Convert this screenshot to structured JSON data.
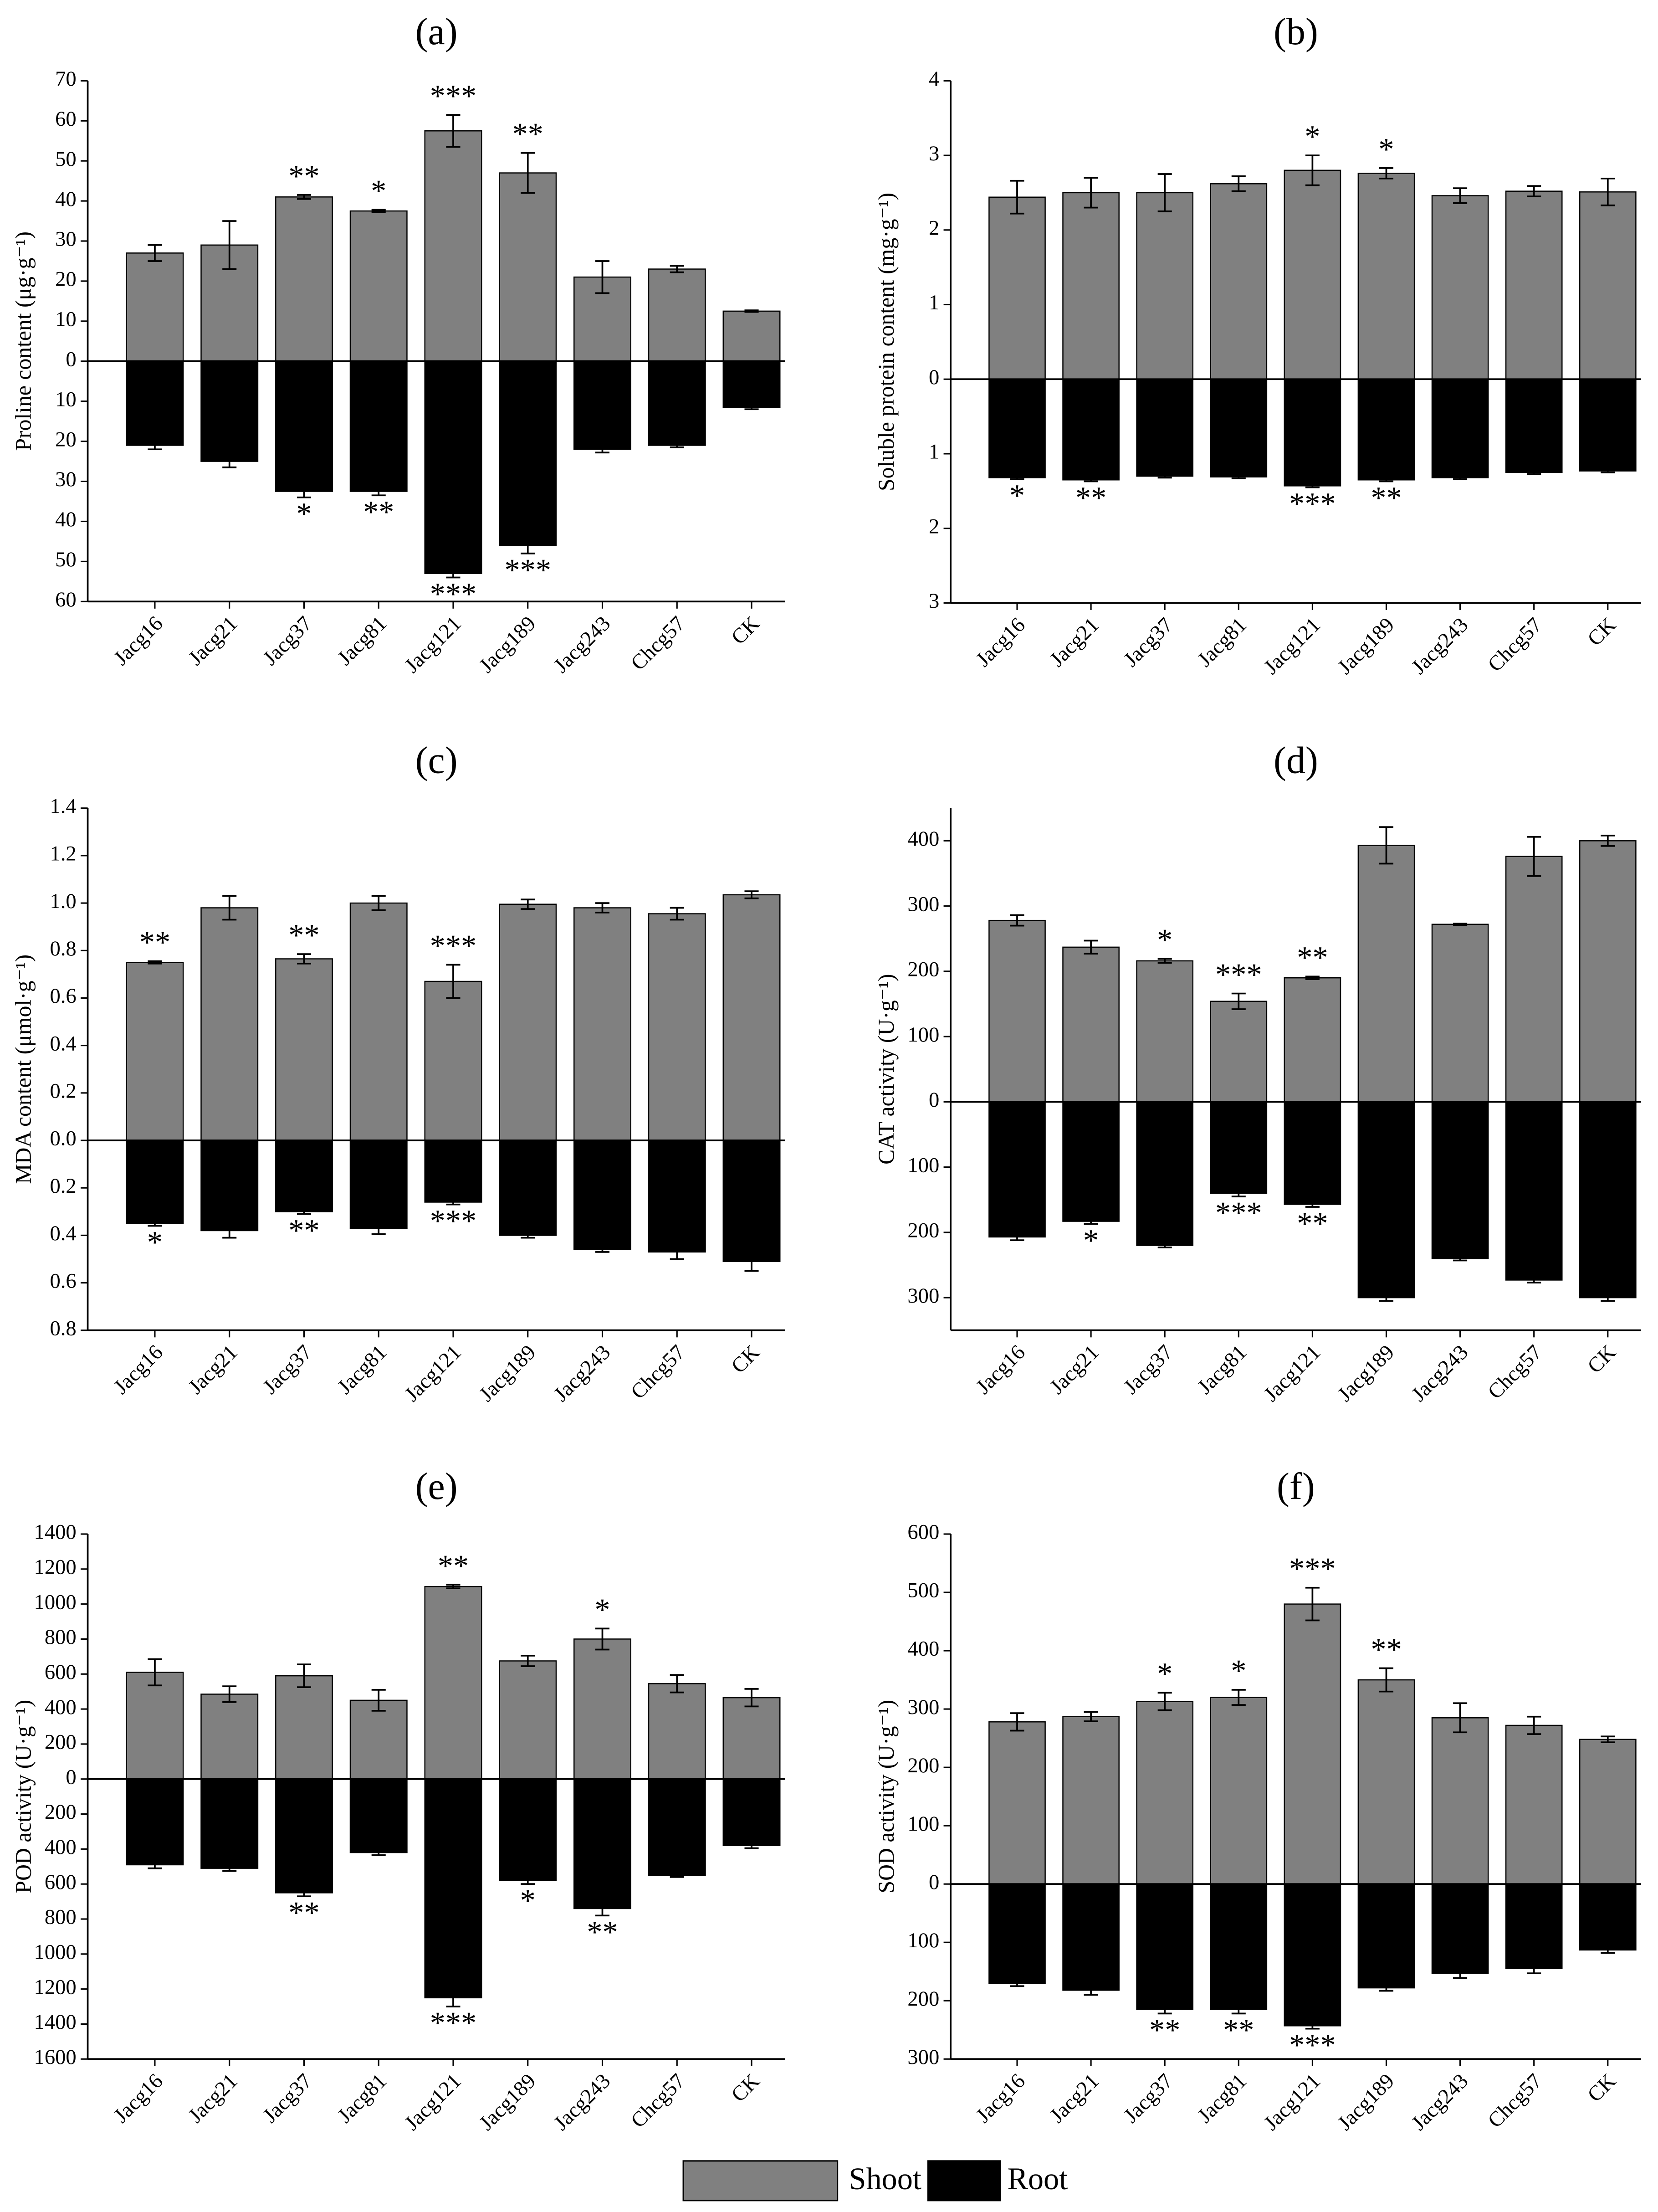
{
  "legend": {
    "entries": [
      {
        "name": "Shoot",
        "color": "#808080"
      },
      {
        "name": "Root",
        "color": "#000000"
      }
    ]
  },
  "chart_data": [
    {
      "type": "bar",
      "title": "(a)",
      "y_label": "Proline content (μg·g⁻¹)",
      "categories": [
        "Jacg16",
        "Jacg21",
        "Jacg37",
        "Jacg81",
        "Jacg121",
        "Jacg189",
        "Jacg243",
        "Chcg57",
        "CK"
      ],
      "ylim": [
        -60,
        70
      ],
      "yticks": [
        70,
        60,
        50,
        40,
        30,
        20,
        10,
        0,
        {
          "value": -10,
          "label": "10"
        },
        {
          "value": -20,
          "label": "20"
        },
        {
          "value": -30,
          "label": "30"
        },
        {
          "value": -40,
          "label": "40"
        },
        {
          "value": -50,
          "label": "50"
        },
        {
          "value": -60,
          "label": "60"
        }
      ],
      "series": [
        {
          "values": [
            27,
            29,
            41,
            37.5,
            57.5,
            47,
            21,
            23,
            12.5
          ],
          "errors": [
            2,
            6,
            0.5,
            0.3,
            4,
            5,
            4,
            0.8,
            0.2
          ],
          "stars": [
            null,
            null,
            "**",
            "*",
            "***",
            "**",
            null,
            null,
            null
          ]
        },
        {
          "values": [
            -21,
            -25,
            -32.5,
            -32.5,
            -53,
            -46,
            -22,
            -21,
            -11.5
          ],
          "errors": [
            1,
            1.5,
            1.5,
            1,
            1,
            2,
            0.8,
            0.5,
            0.5
          ],
          "stars": [
            null,
            null,
            "*",
            "**",
            "***",
            "***",
            null,
            null,
            null
          ]
        }
      ]
    },
    {
      "type": "bar",
      "title": "(b)",
      "y_label": "Soluble protein content (mg·g⁻¹)",
      "categories": [
        "Jacg16",
        "Jacg21",
        "Jacg37",
        "Jacg81",
        "Jacg121",
        "Jacg189",
        "Jacg243",
        "Chcg57",
        "CK"
      ],
      "ylim": [
        -3,
        4
      ],
      "yticks": [
        4,
        3,
        2,
        1,
        0,
        {
          "value": -1,
          "label": "1"
        },
        {
          "value": -2,
          "label": "2"
        },
        {
          "value": -3,
          "label": "3"
        }
      ],
      "series": [
        {
          "values": [
            2.44,
            2.5,
            2.5,
            2.62,
            2.8,
            2.76,
            2.46,
            2.52,
            2.51
          ],
          "errors": [
            0.22,
            0.2,
            0.25,
            0.1,
            0.2,
            0.07,
            0.1,
            0.07,
            0.18
          ],
          "stars": [
            null,
            null,
            null,
            null,
            "*",
            "*",
            null,
            null,
            null
          ]
        },
        {
          "values": [
            -1.32,
            -1.35,
            -1.3,
            -1.31,
            -1.43,
            -1.35,
            -1.32,
            -1.25,
            -1.23
          ],
          "errors": [
            0.02,
            0.02,
            0.02,
            0.02,
            0.02,
            0.02,
            0.02,
            0.02,
            0.02
          ],
          "stars": [
            "*",
            "**",
            null,
            null,
            "***",
            "**",
            null,
            null,
            null
          ]
        }
      ]
    },
    {
      "type": "bar",
      "title": "(c)",
      "y_label": "MDA content (μmol·g⁻¹)",
      "categories": [
        "Jacg16",
        "Jacg21",
        "Jacg37",
        "Jacg81",
        "Jacg121",
        "Jacg189",
        "Jacg243",
        "Chcg57",
        "CK"
      ],
      "ylim": [
        -0.8,
        1.4
      ],
      "yticks": [
        1.4,
        1.2,
        {
          "value": 1,
          "label": "1.0"
        },
        0.8,
        0.6,
        0.4,
        0.2,
        {
          "value": 0,
          "label": "0.0"
        },
        {
          "value": -0.2,
          "label": "0.2"
        },
        {
          "value": -0.4,
          "label": "0.4"
        },
        {
          "value": -0.6,
          "label": "0.6"
        },
        {
          "value": -0.8,
          "label": "0.8"
        }
      ],
      "series": [
        {
          "values": [
            0.75,
            0.98,
            0.765,
            1.0,
            0.67,
            0.995,
            0.98,
            0.955,
            1.035
          ],
          "errors": [
            0.005,
            0.05,
            0.02,
            0.03,
            0.07,
            0.02,
            0.02,
            0.025,
            0.015
          ],
          "stars": [
            "**",
            null,
            "**",
            null,
            "***",
            null,
            null,
            null,
            null
          ]
        },
        {
          "values": [
            -0.35,
            -0.38,
            -0.3,
            -0.37,
            -0.26,
            -0.4,
            -0.46,
            -0.47,
            -0.51
          ],
          "errors": [
            0.01,
            0.03,
            0.01,
            0.025,
            0.01,
            0.01,
            0.01,
            0.03,
            0.04
          ],
          "stars": [
            "*",
            null,
            "**",
            null,
            "***",
            null,
            null,
            null,
            null
          ]
        }
      ]
    },
    {
      "type": "bar",
      "title": "(d)",
      "y_label": "CAT activity (U·g⁻¹)",
      "categories": [
        "Jacg16",
        "Jacg21",
        "Jacg37",
        "Jacg81",
        "Jacg121",
        "Jacg189",
        "Jacg243",
        "Chcg57",
        "CK"
      ],
      "ylim": [
        -350,
        450
      ],
      "yticks": [
        400,
        300,
        200,
        100,
        0,
        {
          "value": -100,
          "label": "100"
        },
        {
          "value": -200,
          "label": "200"
        },
        {
          "value": -300,
          "label": "300"
        }
      ],
      "series": [
        {
          "values": [
            278,
            237,
            216,
            154,
            190,
            393,
            272,
            376,
            400
          ],
          "errors": [
            8,
            10,
            3,
            12,
            2,
            28,
            1,
            30,
            8
          ],
          "stars": [
            null,
            null,
            "*",
            "***",
            "**",
            null,
            null,
            null,
            null
          ]
        },
        {
          "values": [
            -207,
            -183,
            -220,
            -140,
            -157,
            -300,
            -240,
            -273,
            -300
          ],
          "errors": [
            5,
            4,
            3,
            5,
            4,
            5,
            3,
            4,
            5
          ],
          "stars": [
            null,
            "*",
            null,
            "***",
            "**",
            null,
            null,
            null,
            null
          ]
        }
      ]
    },
    {
      "type": "bar",
      "title": "(e)",
      "y_label": "POD activity (U·g⁻¹)",
      "categories": [
        "Jacg16",
        "Jacg21",
        "Jacg37",
        "Jacg81",
        "Jacg121",
        "Jacg189",
        "Jacg243",
        "Chcg57",
        "CK"
      ],
      "ylim": [
        -1600,
        1400
      ],
      "yticks": [
        1400,
        1200,
        1000,
        800,
        600,
        400,
        200,
        0,
        {
          "value": -200,
          "label": "200"
        },
        {
          "value": -400,
          "label": "400"
        },
        {
          "value": -600,
          "label": "600"
        },
        {
          "value": -800,
          "label": "800"
        },
        {
          "value": -1000,
          "label": "1000"
        },
        {
          "value": -1200,
          "label": "1200"
        },
        {
          "value": -1400,
          "label": "1400"
        },
        {
          "value": -1600,
          "label": "1600"
        }
      ],
      "series": [
        {
          "values": [
            610,
            485,
            590,
            450,
            1100,
            675,
            800,
            545,
            465
          ],
          "errors": [
            75,
            45,
            65,
            60,
            10,
            30,
            60,
            50,
            50
          ],
          "stars": [
            null,
            null,
            null,
            null,
            "**",
            null,
            "*",
            null,
            null
          ]
        },
        {
          "values": [
            -490,
            -510,
            -650,
            -420,
            -1250,
            -580,
            -740,
            -550,
            -380
          ],
          "errors": [
            20,
            15,
            20,
            15,
            50,
            20,
            40,
            10,
            15
          ],
          "stars": [
            null,
            null,
            "**",
            null,
            "***",
            "*",
            "**",
            null,
            null
          ]
        }
      ]
    },
    {
      "type": "bar",
      "title": "(f)",
      "y_label": "SOD activity (U·g⁻¹)",
      "categories": [
        "Jacg16",
        "Jacg21",
        "Jacg37",
        "Jacg81",
        "Jacg121",
        "Jacg189",
        "Jacg243",
        "Chcg57",
        "CK"
      ],
      "ylim": [
        -300,
        600
      ],
      "yticks": [
        600,
        500,
        400,
        300,
        200,
        100,
        0,
        {
          "value": -100,
          "label": "100"
        },
        {
          "value": -200,
          "label": "200"
        },
        {
          "value": -300,
          "label": "300"
        }
      ],
      "series": [
        {
          "values": [
            278,
            287,
            313,
            320,
            480,
            350,
            285,
            272,
            248
          ],
          "errors": [
            15,
            8,
            15,
            13,
            28,
            20,
            25,
            15,
            5
          ],
          "stars": [
            null,
            null,
            "*",
            "*",
            "***",
            "**",
            null,
            null,
            null
          ]
        },
        {
          "values": [
            -170,
            -182,
            -215,
            -215,
            -243,
            -178,
            -153,
            -145,
            -113
          ],
          "errors": [
            5,
            8,
            7,
            7,
            5,
            5,
            8,
            8,
            5
          ],
          "stars": [
            null,
            null,
            "**",
            "**",
            "***",
            null,
            null,
            null,
            null
          ]
        }
      ]
    }
  ]
}
